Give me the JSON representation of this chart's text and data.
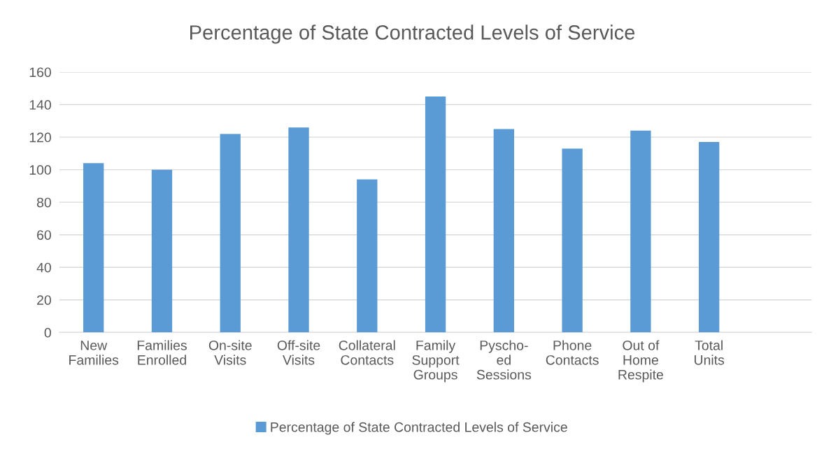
{
  "chart_data": {
    "type": "bar",
    "title": "Percentage of State Contracted Levels of Service",
    "categories": [
      "New\nFamilies",
      "Families\nEnrolled",
      "On-site\nVisits",
      "Off-site\nVisits",
      "Collateral\nContacts",
      "Family\nSupport\nGroups",
      "Pyscho-\ned\nSessions",
      "Phone\nContacts",
      "Out of\nHome\nRespite",
      "Total\nUnits",
      null
    ],
    "series": [
      {
        "name": "Percentage of State Contracted Levels of Service",
        "color": "#5b9bd5",
        "values": [
          104,
          100,
          122,
          126,
          94,
          145,
          125,
          113,
          124,
          117,
          null
        ]
      }
    ],
    "ylim": [
      0,
      160
    ],
    "yticks": [
      0,
      20,
      40,
      60,
      80,
      100,
      120,
      140,
      160
    ],
    "grid": "y",
    "legend": "bottom"
  }
}
